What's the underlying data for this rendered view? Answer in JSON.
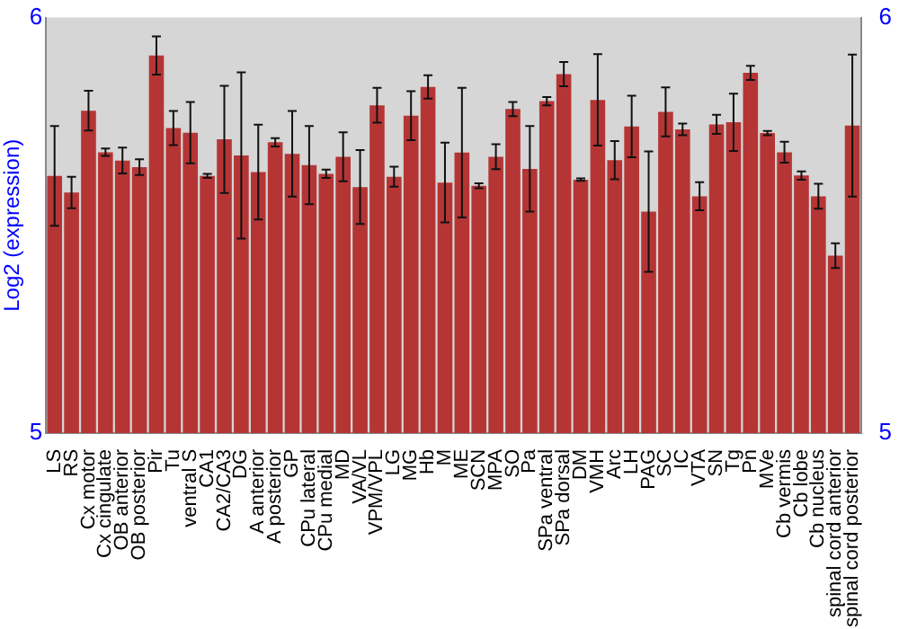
{
  "chart_data": {
    "type": "bar",
    "ylabel": "Log2 (expression)",
    "categories": [
      "LS",
      "RS",
      "Cx motor",
      "Cx cingulate",
      "OB anterior",
      "OB posterior",
      "Pir",
      "Tu",
      "ventral S",
      "CA1",
      "CA2/CA3",
      "DG",
      "A anterior",
      "A posterior",
      "GP",
      "CPu lateral",
      "CPu medial",
      "MD",
      "VA/VL",
      "VPM/VPL",
      "LG",
      "MG",
      "Hb",
      "M",
      "ME",
      "SCN",
      "MPA",
      "SO",
      "Pa",
      "SPa ventral",
      "SPa dorsal",
      "DM",
      "VMH",
      "Arc",
      "LH",
      "PAG",
      "SC",
      "IC",
      "VTA",
      "SN",
      "Tg",
      "Pn",
      "MVe",
      "Cb vermis",
      "Cb lobe",
      "Cb nucleus",
      "spinal cord anterior",
      "spinal cord posterior"
    ],
    "values": [
      5.619,
      5.579,
      5.776,
      5.676,
      5.656,
      5.64,
      5.909,
      5.734,
      5.723,
      5.619,
      5.707,
      5.668,
      5.628,
      5.7,
      5.672,
      5.645,
      5.624,
      5.665,
      5.592,
      5.789,
      5.617,
      5.764,
      5.833,
      5.603,
      5.675,
      5.595,
      5.665,
      5.78,
      5.636,
      5.799,
      5.864,
      5.61,
      5.802,
      5.657,
      5.738,
      5.533,
      5.773,
      5.731,
      5.57,
      5.743,
      5.748,
      5.867,
      5.722,
      5.676,
      5.62,
      5.57,
      5.427,
      5.74
    ],
    "errors": [
      0.12,
      0.038,
      0.048,
      0.009,
      0.031,
      0.019,
      0.046,
      0.041,
      0.074,
      0.005,
      0.129,
      0.2,
      0.114,
      0.01,
      0.103,
      0.094,
      0.01,
      0.059,
      0.089,
      0.042,
      0.024,
      0.059,
      0.028,
      0.096,
      0.156,
      0.006,
      0.03,
      0.017,
      0.103,
      0.01,
      0.029,
      0.003,
      0.11,
      0.046,
      0.074,
      0.145,
      0.059,
      0.014,
      0.034,
      0.023,
      0.069,
      0.017,
      0.005,
      0.025,
      0.01,
      0.03,
      0.03,
      0.171
    ],
    "color": "#b53535",
    "ylim": [
      5,
      6
    ],
    "yticks": [
      5,
      6
    ],
    "y2lim": [
      5,
      6
    ],
    "y2ticks": [
      5,
      6
    ],
    "grid": false,
    "legend": false
  }
}
